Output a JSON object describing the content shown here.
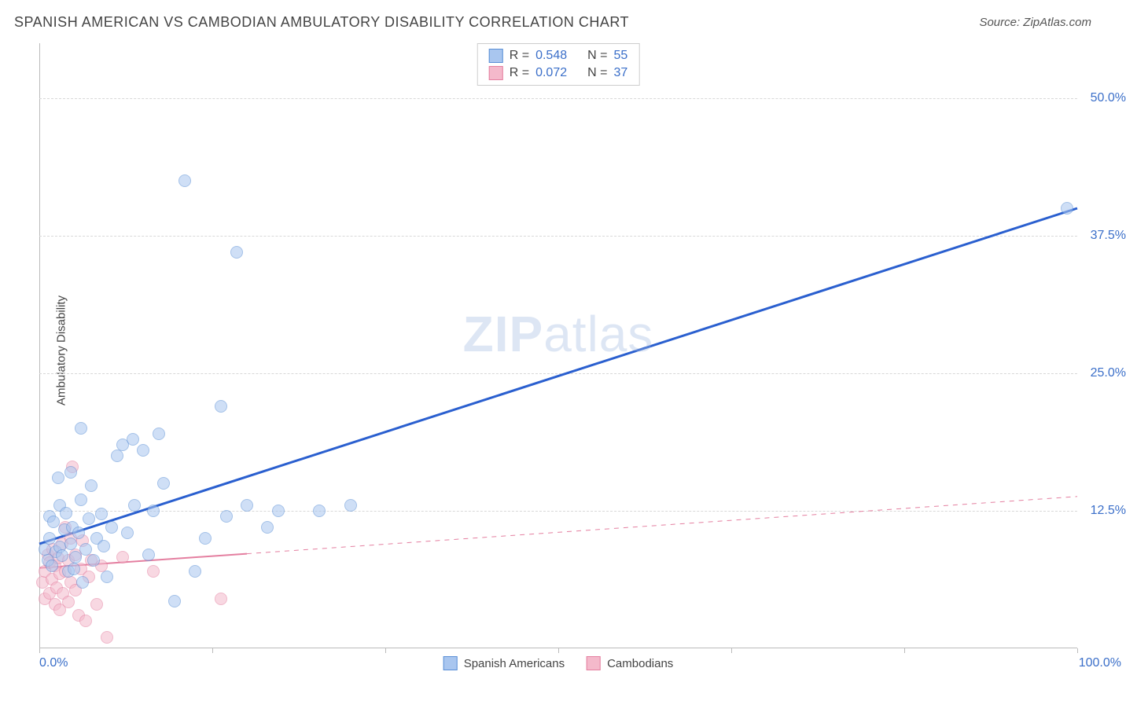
{
  "header": {
    "title": "SPANISH AMERICAN VS CAMBODIAN AMBULATORY DISABILITY CORRELATION CHART",
    "source": "Source: ZipAtlas.com"
  },
  "ylabel": "Ambulatory Disability",
  "watermark": {
    "zip": "ZIP",
    "atlas": "atlas"
  },
  "chart": {
    "type": "scatter",
    "background_color": "#ffffff",
    "grid_color": "#d8d8d8",
    "axis_color": "#bbbbbb",
    "label_color": "#3b6fc9",
    "text_color": "#444444",
    "xlim": [
      0,
      100
    ],
    "ylim": [
      0,
      55
    ],
    "x_min_label": "0.0%",
    "x_max_label": "100.0%",
    "x_ticks": [
      0,
      16.67,
      33.33,
      50,
      66.67,
      83.33,
      100
    ],
    "y_gridlines": [
      {
        "value": 12.5,
        "label": "12.5%"
      },
      {
        "value": 25.0,
        "label": "25.0%"
      },
      {
        "value": 37.5,
        "label": "37.5%"
      },
      {
        "value": 50.0,
        "label": "50.0%"
      }
    ],
    "marker_radius": 8,
    "marker_opacity": 0.55,
    "series": [
      {
        "name": "Spanish Americans",
        "fill_color": "#a9c6ef",
        "stroke_color": "#5a8fd6",
        "legend_R_label": "R =",
        "legend_R_value": "0.548",
        "legend_N_label": "N =",
        "legend_N_value": "55",
        "trend": {
          "x1": 0,
          "y1": 9.5,
          "x2": 100,
          "y2": 40.0,
          "color": "#2a5fcf",
          "width": 3,
          "dash": "none"
        },
        "points": [
          [
            0.5,
            9.0
          ],
          [
            0.8,
            8.0
          ],
          [
            1.0,
            10.0
          ],
          [
            1.2,
            7.5
          ],
          [
            1.0,
            12.0
          ],
          [
            1.4,
            11.5
          ],
          [
            1.6,
            8.8
          ],
          [
            1.8,
            15.5
          ],
          [
            2.0,
            9.2
          ],
          [
            2.0,
            13.0
          ],
          [
            2.2,
            8.4
          ],
          [
            2.4,
            10.8
          ],
          [
            2.6,
            12.3
          ],
          [
            2.8,
            7.0
          ],
          [
            3.0,
            9.5
          ],
          [
            3.2,
            11.0
          ],
          [
            3.0,
            16.0
          ],
          [
            3.5,
            8.3
          ],
          [
            3.8,
            10.5
          ],
          [
            4.0,
            13.5
          ],
          [
            4.0,
            20.0
          ],
          [
            4.5,
            9.0
          ],
          [
            4.8,
            11.8
          ],
          [
            5.0,
            14.8
          ],
          [
            5.2,
            8.0
          ],
          [
            5.5,
            10.0
          ],
          [
            6.0,
            12.2
          ],
          [
            6.2,
            9.3
          ],
          [
            6.5,
            6.5
          ],
          [
            7.0,
            11.0
          ],
          [
            7.5,
            17.5
          ],
          [
            8.0,
            18.5
          ],
          [
            8.5,
            10.5
          ],
          [
            9.0,
            19.0
          ],
          [
            9.2,
            13.0
          ],
          [
            10.0,
            18.0
          ],
          [
            10.5,
            8.5
          ],
          [
            11.0,
            12.5
          ],
          [
            11.5,
            19.5
          ],
          [
            12.0,
            15.0
          ],
          [
            13.0,
            4.3
          ],
          [
            14.0,
            42.5
          ],
          [
            15.0,
            7.0
          ],
          [
            16.0,
            10.0
          ],
          [
            17.5,
            22.0
          ],
          [
            18.0,
            12.0
          ],
          [
            19.0,
            36.0
          ],
          [
            20.0,
            13.0
          ],
          [
            22.0,
            11.0
          ],
          [
            23.0,
            12.5
          ],
          [
            27.0,
            12.5
          ],
          [
            30.0,
            13.0
          ],
          [
            99.0,
            40.0
          ],
          [
            3.3,
            7.2
          ],
          [
            4.2,
            6.0
          ]
        ]
      },
      {
        "name": "Cambodians",
        "fill_color": "#f4b9cb",
        "stroke_color": "#e47fa0",
        "legend_R_label": "R =",
        "legend_R_value": "0.072",
        "legend_N_label": "N =",
        "legend_N_value": "37",
        "trend": {
          "x1": 0,
          "y1": 7.3,
          "x2": 100,
          "y2": 13.8,
          "color": "#e47fa0",
          "width": 2,
          "dash": "solid-then-dash",
          "solid_until_x": 20
        },
        "points": [
          [
            0.3,
            6.0
          ],
          [
            0.5,
            7.0
          ],
          [
            0.5,
            4.5
          ],
          [
            0.8,
            8.5
          ],
          [
            1.0,
            5.0
          ],
          [
            1.0,
            7.8
          ],
          [
            1.2,
            6.3
          ],
          [
            1.3,
            9.0
          ],
          [
            1.5,
            4.0
          ],
          [
            1.5,
            7.5
          ],
          [
            1.7,
            5.5
          ],
          [
            1.8,
            8.2
          ],
          [
            2.0,
            3.5
          ],
          [
            2.0,
            6.8
          ],
          [
            2.2,
            9.5
          ],
          [
            2.3,
            5.0
          ],
          [
            2.5,
            7.0
          ],
          [
            2.5,
            11.0
          ],
          [
            2.8,
            4.2
          ],
          [
            2.8,
            8.0
          ],
          [
            3.0,
            6.0
          ],
          [
            3.0,
            10.0
          ],
          [
            3.2,
            16.5
          ],
          [
            3.5,
            5.3
          ],
          [
            3.5,
            8.5
          ],
          [
            3.8,
            3.0
          ],
          [
            4.0,
            7.2
          ],
          [
            4.2,
            9.8
          ],
          [
            4.5,
            2.5
          ],
          [
            4.8,
            6.5
          ],
          [
            5.0,
            8.0
          ],
          [
            5.5,
            4.0
          ],
          [
            6.0,
            7.5
          ],
          [
            6.5,
            1.0
          ],
          [
            8.0,
            8.3
          ],
          [
            11.0,
            7.0
          ],
          [
            17.5,
            4.5
          ]
        ]
      }
    ]
  }
}
